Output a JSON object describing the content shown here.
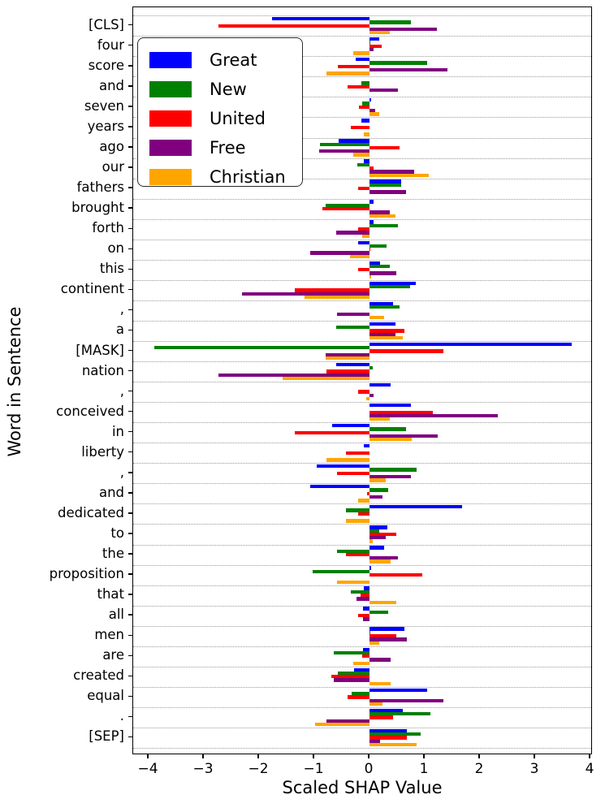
{
  "figure": {
    "background": "#ffffff"
  },
  "chart_data": {
    "type": "bar",
    "orientation": "horizontal",
    "title": "",
    "xlabel": "Scaled SHAP Value",
    "ylabel": "Word in Sentence",
    "xlim": [
      -4.28,
      4.04
    ],
    "x_ticks": [
      -4,
      -3,
      -2,
      -1,
      0,
      1,
      2,
      3,
      4
    ],
    "x_tick_labels": [
      "−4",
      "−3",
      "−2",
      "−1",
      "0",
      "1",
      "2",
      "3",
      "4"
    ],
    "grid": "dotted horizontal separators between word groups",
    "legend_position": "upper left",
    "categories": [
      "[CLS]",
      "four",
      "score",
      "and",
      "seven",
      "years",
      "ago",
      "our",
      "fathers",
      "brought",
      "forth",
      "on",
      "this",
      "continent",
      ",",
      "a",
      "[MASK]",
      "nation",
      ",",
      "conceived",
      "in",
      "liberty",
      ",",
      "and",
      "dedicated",
      "to",
      "the",
      "proposition",
      "that",
      "all",
      "men",
      "are",
      "created",
      "equal",
      ".",
      "[SEP]"
    ],
    "series": [
      {
        "name": "Great",
        "color": "#0000ff",
        "values": [
          -1.77,
          0.18,
          -0.25,
          0.0,
          0.03,
          -0.14,
          -0.56,
          -0.1,
          0.58,
          0.07,
          0.08,
          -0.21,
          0.19,
          0.84,
          0.42,
          0.47,
          3.66,
          -0.6,
          0.38,
          0.75,
          -0.67,
          -0.11,
          -0.95,
          -1.08,
          1.67,
          0.33,
          0.27,
          0.03,
          -0.1,
          -0.12,
          0.63,
          -0.12,
          -0.28,
          1.04,
          0.6,
          0.67
        ]
      },
      {
        "name": "New",
        "color": "#008000",
        "values": [
          0.75,
          0.02,
          1.05,
          -0.15,
          -0.13,
          0.0,
          -0.89,
          -0.22,
          0.57,
          -0.8,
          0.52,
          0.31,
          0.37,
          0.74,
          0.55,
          -0.6,
          -3.89,
          0.06,
          0.0,
          0.0,
          0.66,
          0.0,
          0.85,
          0.34,
          -0.42,
          0.18,
          -0.59,
          -1.03,
          -0.34,
          0.34,
          0.02,
          -0.65,
          -0.57,
          -0.33,
          1.11,
          0.93
        ]
      },
      {
        "name": "United",
        "color": "#ff0000",
        "values": [
          -2.74,
          0.22,
          -0.58,
          -0.4,
          -0.19,
          -0.34,
          0.55,
          0.07,
          -0.2,
          -0.86,
          -0.21,
          0.02,
          -0.21,
          -1.36,
          0.0,
          0.63,
          1.34,
          -0.78,
          -0.21,
          1.14,
          -1.36,
          -0.42,
          -0.59,
          -0.05,
          -0.21,
          0.48,
          -0.42,
          0.95,
          -0.16,
          -0.2,
          0.48,
          -0.13,
          -0.69,
          -0.4,
          0.42,
          0.67
        ]
      },
      {
        "name": "Free",
        "color": "#800080",
        "values": [
          1.22,
          0.08,
          1.41,
          0.51,
          0.1,
          0.0,
          -0.91,
          0.81,
          0.66,
          0.37,
          -0.61,
          -1.07,
          0.48,
          -2.31,
          -0.59,
          0.47,
          -0.79,
          -2.74,
          0.08,
          2.32,
          1.24,
          0.0,
          0.75,
          0.23,
          0.0,
          0.29,
          0.52,
          0.0,
          -0.23,
          -0.12,
          0.68,
          0.38,
          -0.65,
          1.34,
          -0.78,
          0.19
        ]
      },
      {
        "name": "Christian",
        "color": "#ffa500",
        "values": [
          0.37,
          -0.3,
          -0.78,
          0.0,
          0.17,
          -0.1,
          -0.3,
          1.08,
          0.0,
          0.47,
          -0.13,
          -0.36,
          0.03,
          -1.17,
          0.27,
          0.6,
          -0.79,
          -1.58,
          -0.06,
          0.37,
          0.76,
          -0.78,
          0.3,
          -0.2,
          -0.42,
          0.06,
          0.38,
          -0.59,
          0.49,
          0.0,
          0.18,
          -0.29,
          0.38,
          0.23,
          -0.98,
          0.86
        ]
      }
    ]
  }
}
